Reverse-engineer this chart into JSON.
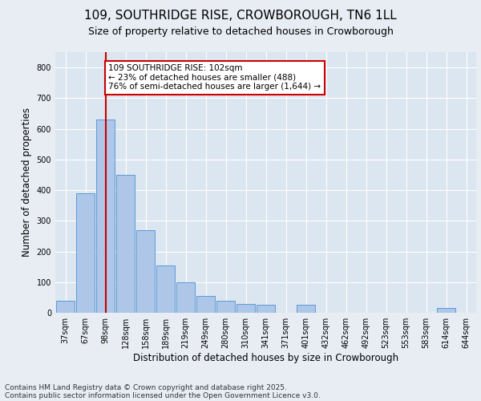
{
  "title_line1": "109, SOUTHRIDGE RISE, CROWBOROUGH, TN6 1LL",
  "title_line2": "Size of property relative to detached houses in Crowborough",
  "xlabel": "Distribution of detached houses by size in Crowborough",
  "ylabel": "Number of detached properties",
  "categories": [
    "37sqm",
    "67sqm",
    "98sqm",
    "128sqm",
    "158sqm",
    "189sqm",
    "219sqm",
    "249sqm",
    "280sqm",
    "310sqm",
    "341sqm",
    "371sqm",
    "401sqm",
    "432sqm",
    "462sqm",
    "492sqm",
    "523sqm",
    "553sqm",
    "583sqm",
    "614sqm",
    "644sqm"
  ],
  "values": [
    40,
    390,
    630,
    450,
    270,
    155,
    100,
    55,
    40,
    30,
    25,
    0,
    25,
    0,
    0,
    0,
    0,
    0,
    0,
    15,
    0
  ],
  "bar_color": "#aec6e8",
  "bar_edge_color": "#5b9bd5",
  "vline_x_index": 2,
  "vline_color": "#cc0000",
  "annotation_text": "109 SOUTHRIDGE RISE: 102sqm\n← 23% of detached houses are smaller (488)\n76% of semi-detached houses are larger (1,644) →",
  "annotation_box_color": "#ffffff",
  "annotation_box_edge": "#cc0000",
  "ylim": [
    0,
    850
  ],
  "yticks": [
    0,
    100,
    200,
    300,
    400,
    500,
    600,
    700,
    800
  ],
  "background_color": "#e8edf4",
  "plot_bg_color": "#dce6f0",
  "grid_color": "#ffffff",
  "footer_line1": "Contains HM Land Registry data © Crown copyright and database right 2025.",
  "footer_line2": "Contains public sector information licensed under the Open Government Licence v3.0.",
  "title_fontsize": 11,
  "subtitle_fontsize": 9,
  "label_fontsize": 8.5,
  "tick_fontsize": 7,
  "footer_fontsize": 6.5,
  "annot_fontsize": 7.5
}
